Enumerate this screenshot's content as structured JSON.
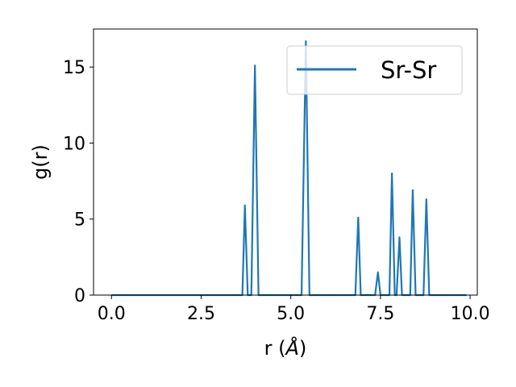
{
  "chart_data": {
    "type": "line",
    "title": "",
    "xlabel_prefix": "r (",
    "xlabel_unit": "Å",
    "xlabel_suffix": ")",
    "ylabel": "g(r)",
    "xlim": [
      -0.5,
      10.2
    ],
    "ylim": [
      0,
      17.5
    ],
    "xticks": [
      0.0,
      2.5,
      5.0,
      7.5,
      10.0
    ],
    "xtick_labels": [
      "0.0",
      "2.5",
      "5.0",
      "7.5",
      "10.0"
    ],
    "yticks": [
      0,
      5,
      10,
      15
    ],
    "ytick_labels": [
      "0",
      "5",
      "10",
      "15"
    ],
    "grid": false,
    "legend_position": "top-right",
    "series": [
      {
        "name": "Sr-Sr",
        "color": "#1f77b4",
        "points": [
          [
            0.0,
            0
          ],
          [
            3.65,
            0
          ],
          [
            3.72,
            5.9
          ],
          [
            3.8,
            0
          ],
          [
            3.9,
            0
          ],
          [
            4.0,
            15.1
          ],
          [
            4.1,
            0
          ],
          [
            5.3,
            0
          ],
          [
            5.42,
            16.7
          ],
          [
            5.52,
            0
          ],
          [
            6.8,
            0
          ],
          [
            6.88,
            5.1
          ],
          [
            6.95,
            0
          ],
          [
            7.35,
            0
          ],
          [
            7.43,
            1.5
          ],
          [
            7.5,
            0
          ],
          [
            7.75,
            0
          ],
          [
            7.82,
            8.0
          ],
          [
            7.9,
            0
          ],
          [
            7.95,
            0
          ],
          [
            8.03,
            3.8
          ],
          [
            8.1,
            0
          ],
          [
            8.33,
            0
          ],
          [
            8.4,
            6.9
          ],
          [
            8.48,
            0
          ],
          [
            8.7,
            0
          ],
          [
            8.78,
            6.3
          ],
          [
            8.86,
            0
          ],
          [
            9.9,
            0
          ]
        ]
      }
    ]
  }
}
